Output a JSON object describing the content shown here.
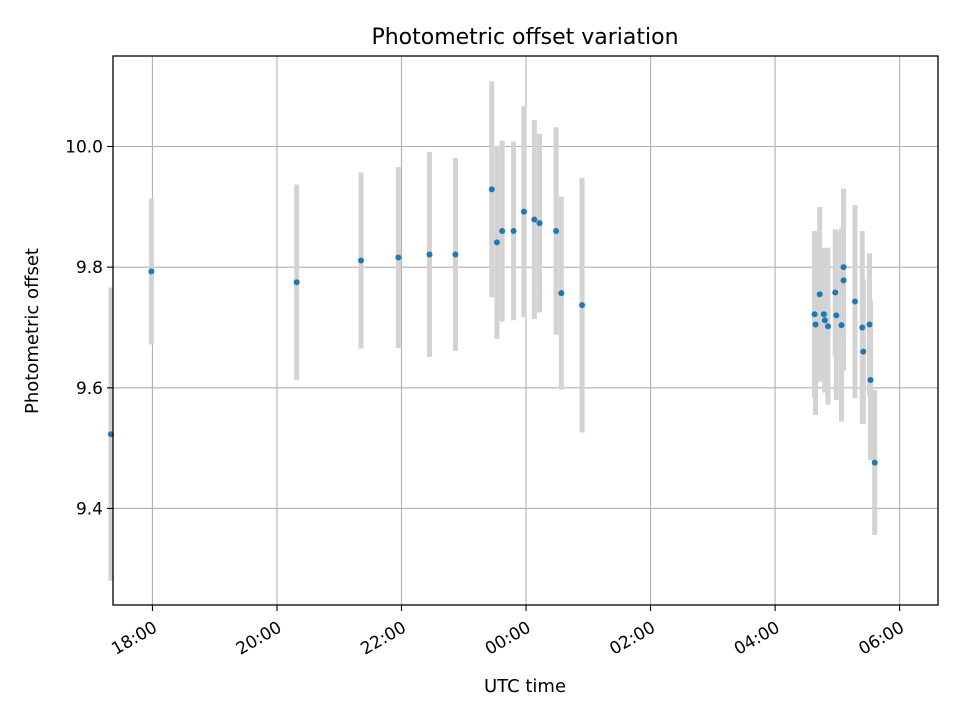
{
  "chart_data": {
    "type": "scatter",
    "title": "Photometric offset variation",
    "xlabel": "UTC time",
    "ylabel": "Photometric offset",
    "x_unit": "UTC time (HH:MM)",
    "xlim": [
      "17:22",
      "06:37"
    ],
    "ylim": [
      9.24,
      10.15
    ],
    "x_ticks": [
      "18:00",
      "20:00",
      "22:00",
      "00:00",
      "02:00",
      "04:00",
      "06:00"
    ],
    "y_ticks": [
      "9.4",
      "9.6",
      "9.8",
      "10.0"
    ],
    "grid": true,
    "colors": {
      "point": "#1f77b4",
      "errorbar": "#d3d3d3",
      "grid": "#b0b0b0"
    },
    "series": [
      {
        "points": [
          {
            "time": "17:20",
            "y": 9.523,
            "err": 0.243
          },
          {
            "time": "17:59",
            "y": 9.793,
            "err": 0.121
          },
          {
            "time": "20:19",
            "y": 9.775,
            "err": 0.162
          },
          {
            "time": "21:21",
            "y": 9.811,
            "err": 0.146
          },
          {
            "time": "21:57",
            "y": 9.816,
            "err": 0.15
          },
          {
            "time": "22:27",
            "y": 9.821,
            "err": 0.17
          },
          {
            "time": "22:52",
            "y": 9.821,
            "err": 0.16
          },
          {
            "time": "23:27",
            "y": 9.929,
            "err": 0.179
          },
          {
            "time": "23:32",
            "y": 9.841,
            "err": 0.16
          },
          {
            "time": "23:37",
            "y": 9.86,
            "err": 0.15
          },
          {
            "time": "23:48",
            "y": 9.86,
            "err": 0.148
          },
          {
            "time": "23:58",
            "y": 9.892,
            "err": 0.175
          },
          {
            "time": "00:08",
            "y": 9.879,
            "err": 0.165
          },
          {
            "time": "00:13",
            "y": 9.873,
            "err": 0.148
          },
          {
            "time": "00:29",
            "y": 9.86,
            "err": 0.172
          },
          {
            "time": "00:34",
            "y": 9.757,
            "err": 0.16
          },
          {
            "time": "00:54",
            "y": 9.737,
            "err": 0.211
          },
          {
            "time": "04:38",
            "y": 9.722,
            "err": 0.138
          },
          {
            "time": "04:39",
            "y": 9.705,
            "err": 0.15
          },
          {
            "time": "04:43",
            "y": 9.755,
            "err": 0.145
          },
          {
            "time": "04:47",
            "y": 9.722,
            "err": 0.11
          },
          {
            "time": "04:48",
            "y": 9.712,
            "err": 0.12
          },
          {
            "time": "04:51",
            "y": 9.702,
            "err": 0.13
          },
          {
            "time": "04:58",
            "y": 9.758,
            "err": 0.105
          },
          {
            "time": "04:59",
            "y": 9.72,
            "err": 0.14
          },
          {
            "time": "05:04",
            "y": 9.704,
            "err": 0.16
          },
          {
            "time": "05:06",
            "y": 9.8,
            "err": 0.13
          },
          {
            "time": "05:06",
            "y": 9.778,
            "err": 0.15
          },
          {
            "time": "05:17",
            "y": 9.743,
            "err": 0.16
          },
          {
            "time": "05:24",
            "y": 9.7,
            "err": 0.16
          },
          {
            "time": "05:25",
            "y": 9.66,
            "err": 0.12
          },
          {
            "time": "05:31",
            "y": 9.705,
            "err": 0.118
          },
          {
            "time": "05:32",
            "y": 9.613,
            "err": 0.133
          },
          {
            "time": "05:36",
            "y": 9.476,
            "err": 0.12
          }
        ]
      }
    ]
  }
}
